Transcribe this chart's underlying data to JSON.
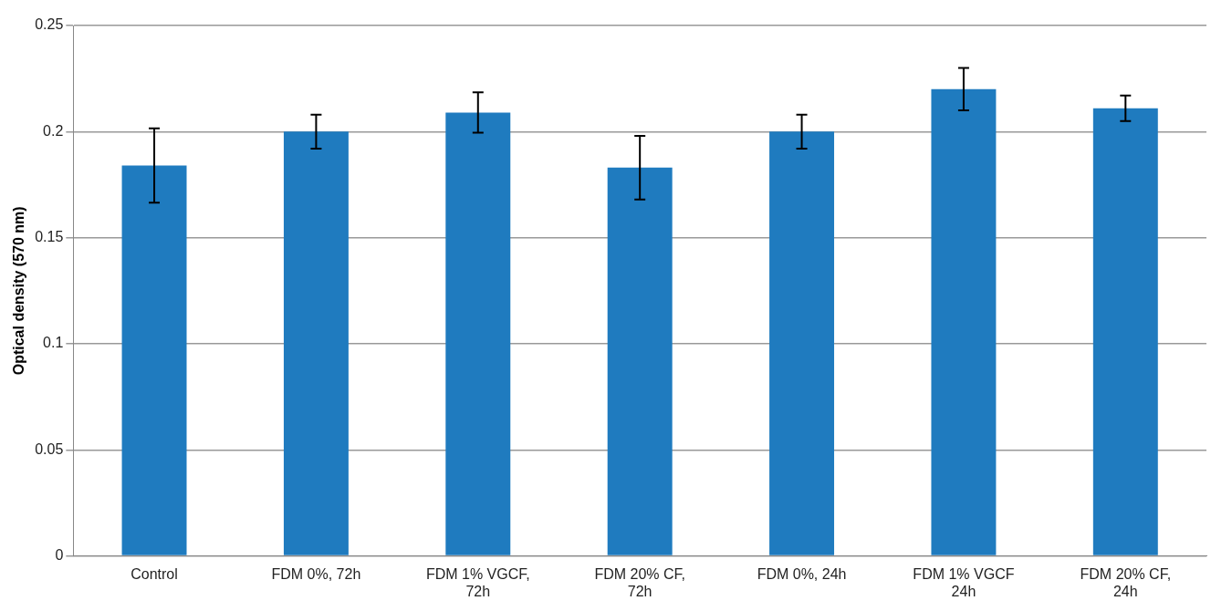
{
  "chart_data": {
    "type": "bar",
    "ylabel": "Optical density (570 nm)",
    "categories": [
      "Control",
      "FDM 0%, 72h",
      "FDM 1% VGCF, 72h",
      "FDM 20% CF, 72h",
      "FDM 0%, 24h",
      "FDM 1% VGCF 24h",
      "FDM 20% CF, 24h"
    ],
    "values": [
      0.184,
      0.2,
      0.209,
      0.183,
      0.2,
      0.22,
      0.211
    ],
    "errors": [
      0.0175,
      0.008,
      0.0095,
      0.015,
      0.008,
      0.01,
      0.006
    ],
    "color": "#1f7bbf",
    "ylim": [
      0,
      0.25
    ],
    "yticks": [
      0,
      0.05,
      0.1,
      0.15,
      0.2,
      0.25
    ],
    "grid": "y",
    "legend": false
  }
}
